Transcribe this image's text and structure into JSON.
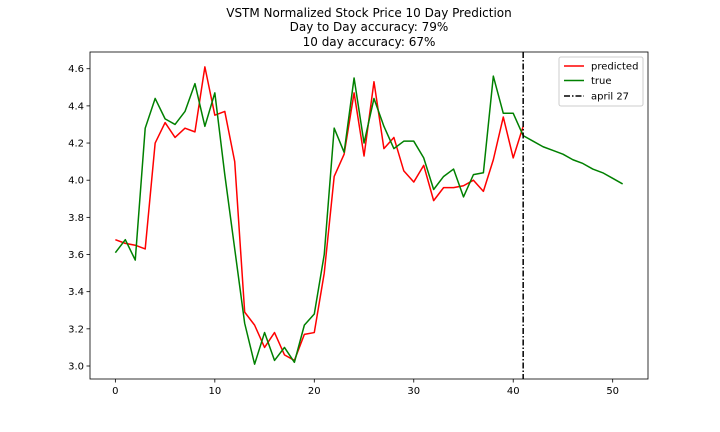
{
  "chart_data": {
    "type": "line",
    "title": [
      "VSTM Normalized Stock Price 10 Day Prediction",
      "Day to Day accuracy: 79%",
      "10 day accuracy: 67%"
    ],
    "xlabel": "",
    "ylabel": "",
    "xlim": [
      -2.55,
      53.55
    ],
    "ylim": [
      2.93,
      4.69
    ],
    "xticks": [
      0,
      10,
      20,
      30,
      40,
      50
    ],
    "yticks": [
      3.0,
      3.2,
      3.4,
      3.6,
      3.8,
      4.0,
      4.2,
      4.4,
      4.6
    ],
    "grid": false,
    "legend_position": "top-right",
    "series": [
      {
        "name": "predicted",
        "color": "#ff0000",
        "x": [
          0,
          1,
          2,
          3,
          4,
          5,
          6,
          7,
          8,
          9,
          10,
          11,
          12,
          13,
          14,
          15,
          16,
          17,
          18,
          19,
          20,
          21,
          22,
          23,
          24,
          25,
          26,
          27,
          28,
          29,
          30,
          31,
          32,
          33,
          34,
          35,
          36,
          37,
          38,
          39,
          40,
          41
        ],
        "y": [
          3.68,
          3.66,
          3.65,
          3.63,
          4.2,
          4.31,
          4.23,
          4.28,
          4.26,
          4.61,
          4.35,
          4.37,
          4.1,
          3.29,
          3.22,
          3.1,
          3.18,
          3.06,
          3.03,
          3.17,
          3.18,
          3.5,
          4.02,
          4.14,
          4.47,
          4.13,
          4.53,
          4.17,
          4.23,
          4.05,
          3.99,
          4.08,
          3.89,
          3.96,
          3.96,
          3.97,
          4.0,
          3.94,
          4.11,
          4.34,
          4.12,
          4.29
        ]
      },
      {
        "name": "true",
        "color": "#008000",
        "x": [
          0,
          1,
          2,
          3,
          4,
          5,
          6,
          7,
          8,
          9,
          10,
          11,
          12,
          13,
          14,
          15,
          16,
          17,
          18,
          19,
          20,
          21,
          22,
          23,
          24,
          25,
          26,
          27,
          28,
          29,
          30,
          31,
          32,
          33,
          34,
          35,
          36,
          37,
          38,
          39,
          40,
          41,
          42,
          43,
          44,
          45,
          46,
          47,
          48,
          49,
          50,
          51
        ],
        "y": [
          3.61,
          3.68,
          3.57,
          4.28,
          4.44,
          4.33,
          4.3,
          4.37,
          4.52,
          4.29,
          4.47,
          4.03,
          3.63,
          3.23,
          3.01,
          3.18,
          3.03,
          3.1,
          3.02,
          3.22,
          3.28,
          3.6,
          4.28,
          4.15,
          4.55,
          4.2,
          4.44,
          4.29,
          4.17,
          4.21,
          4.21,
          4.12,
          3.95,
          4.02,
          4.06,
          3.91,
          4.03,
          4.04,
          4.56,
          4.36,
          4.36,
          4.24,
          4.21,
          4.18,
          4.16,
          4.14,
          4.11,
          4.09,
          4.06,
          4.04,
          4.01,
          3.98
        ]
      }
    ],
    "vline": {
      "x": 41,
      "label": "april 27",
      "color": "#000000",
      "style": "dashdot"
    }
  }
}
